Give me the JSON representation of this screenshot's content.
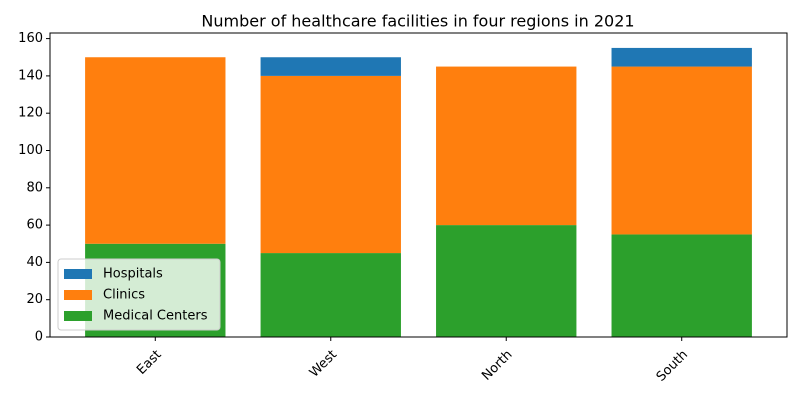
{
  "chart_data": {
    "type": "bar",
    "stacked": true,
    "title": "Number of healthcare facilities in four regions in 2021",
    "categories": [
      "East",
      "West",
      "North",
      "South"
    ],
    "series": [
      {
        "name": "Hospitals",
        "color": "#1f77b4",
        "values": [
          0,
          10,
          0,
          10
        ]
      },
      {
        "name": "Clinics",
        "color": "#ff7f0e",
        "values": [
          100,
          95,
          85,
          90
        ]
      },
      {
        "name": "Medical Centers",
        "color": "#2ca02c",
        "values": [
          50,
          45,
          60,
          55
        ]
      }
    ],
    "stack_order": [
      "Medical Centers",
      "Clinics",
      "Hospitals"
    ],
    "ylim": [
      0,
      163
    ],
    "yticks": [
      0,
      20,
      40,
      60,
      80,
      100,
      120,
      140,
      160
    ],
    "legend": "lower left"
  }
}
